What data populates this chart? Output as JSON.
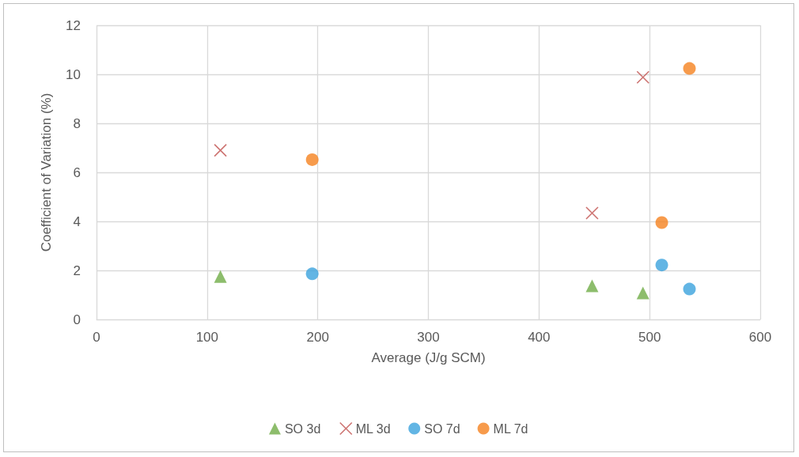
{
  "chart_data": {
    "type": "scatter",
    "xlabel": "Average (J/g SCM)",
    "ylabel": "Coefficient of Variation (%)",
    "xlim": [
      0,
      600
    ],
    "xticks": [
      0,
      100,
      200,
      300,
      400,
      500,
      600
    ],
    "ylim": [
      0,
      12
    ],
    "yticks": [
      0,
      2,
      4,
      6,
      8,
      10,
      12
    ],
    "grid": true,
    "legend": "bottom",
    "series": [
      {
        "name": "SO 3d",
        "color": "#70ad47",
        "marker": "triangle",
        "x": [
          112,
          448,
          494
        ],
        "values": [
          1.75,
          1.37,
          1.08
        ]
      },
      {
        "name": "ML 3d",
        "color": "#c0504d",
        "marker": "cross",
        "x": [
          112,
          448,
          494
        ],
        "values": [
          6.9,
          4.34,
          9.88
        ]
      },
      {
        "name": "SO 7d",
        "color": "#3ba3dd",
        "marker": "circle",
        "x": [
          195,
          511,
          536
        ],
        "values": [
          1.86,
          2.22,
          1.24
        ]
      },
      {
        "name": "ML 7d",
        "color": "#f5821f",
        "marker": "circle",
        "x": [
          195,
          511,
          536
        ],
        "values": [
          6.52,
          3.95,
          10.24
        ]
      }
    ]
  }
}
